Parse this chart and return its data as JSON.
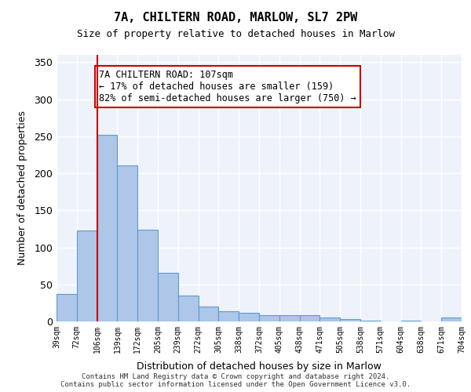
{
  "title_line1": "7A, CHILTERN ROAD, MARLOW, SL7 2PW",
  "title_line2": "Size of property relative to detached houses in Marlow",
  "xlabel": "Distribution of detached houses by size in Marlow",
  "ylabel": "Number of detached properties",
  "bar_labels": [
    "39sqm",
    "72sqm",
    "106sqm",
    "139sqm",
    "172sqm",
    "205sqm",
    "239sqm",
    "272sqm",
    "305sqm",
    "338sqm",
    "372sqm",
    "405sqm",
    "438sqm",
    "471sqm",
    "505sqm",
    "538sqm",
    "571sqm",
    "604sqm",
    "638sqm",
    "671sqm",
    "704sqm"
  ],
  "bar_values": [
    37,
    123,
    252,
    211,
    124,
    66,
    35,
    20,
    14,
    12,
    9,
    9,
    8,
    5,
    3,
    1,
    0,
    1,
    0,
    5
  ],
  "bar_color": "#aec6e8",
  "bar_edge_color": "#5b9bd5",
  "property_size": 107,
  "property_sqm_label": "107sqm",
  "annotation_text": "7A CHILTERN ROAD: 107sqm\n← 17% of detached houses are smaller (159)\n82% of semi-detached houses are larger (750) →",
  "vline_color": "#cc0000",
  "vline_bar_index": 2,
  "annotation_box_color": "#ffffff",
  "annotation_box_edge": "#cc0000",
  "ylim": [
    0,
    360
  ],
  "yticks": [
    0,
    50,
    100,
    150,
    200,
    250,
    300,
    350
  ],
  "footer": "Contains HM Land Registry data © Crown copyright and database right 2024.\nContains public sector information licensed under the Open Government Licence v3.0.",
  "bg_color": "#eef3fb",
  "grid_color": "#ffffff"
}
